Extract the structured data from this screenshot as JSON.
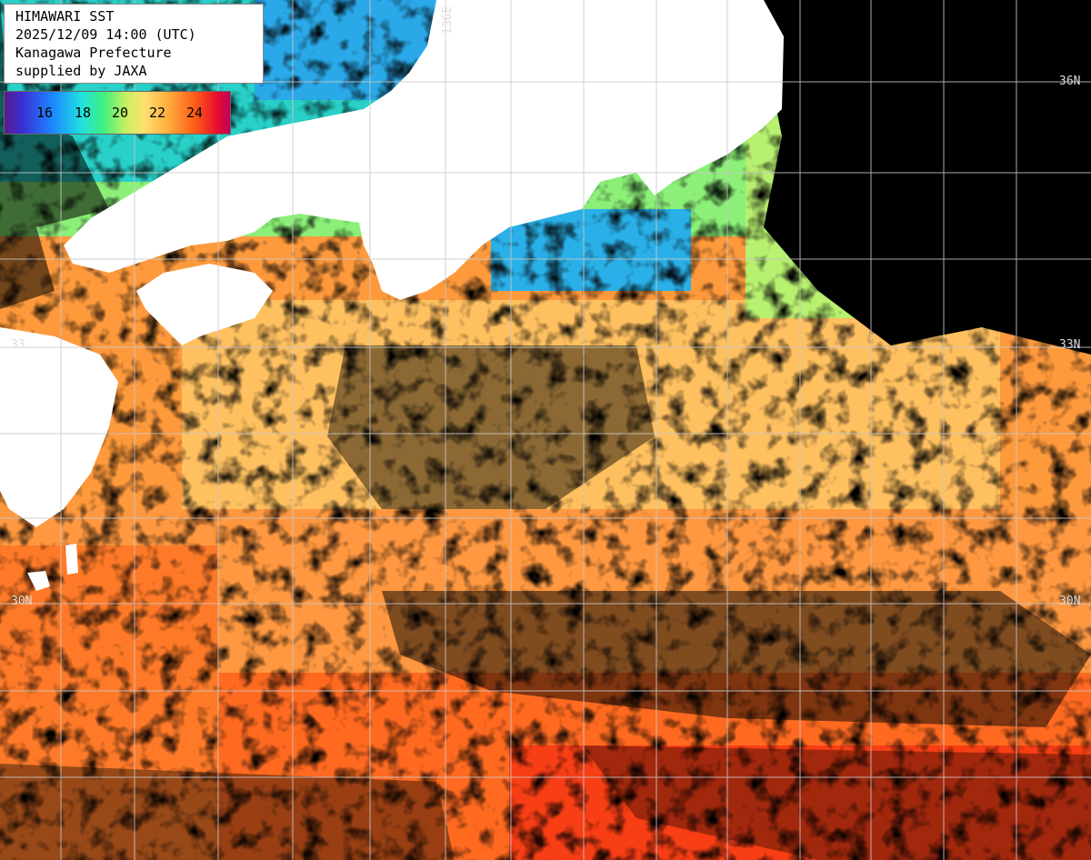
{
  "header": {
    "line1": "HIMAWARI SST",
    "line2": "2025/12/09 14:00 (UTC)",
    "line3": "Kanagawa Prefecture",
    "line4": "supplied by JAXA"
  },
  "legend": {
    "ticks": [
      "16",
      "18",
      "20",
      "22",
      "24"
    ],
    "colors": [
      "#5a1a8a",
      "#3a2fd8",
      "#1a8cff",
      "#20e0e0",
      "#40f080",
      "#c8f060",
      "#ffe070",
      "#ffb040",
      "#ff6018",
      "#e8102a",
      "#c00060"
    ]
  },
  "grid": {
    "lat_labels": {
      "lat36_right": "36N",
      "lat33_left": "33",
      "lat33_right": "33N",
      "lat30_left": "30N",
      "lat30_right": "30N"
    },
    "lon_labels": {
      "lon136": "136E"
    }
  },
  "colors": {
    "land": "#ffffff",
    "cloud": "#000000",
    "gridline": "#c8c8c8"
  }
}
